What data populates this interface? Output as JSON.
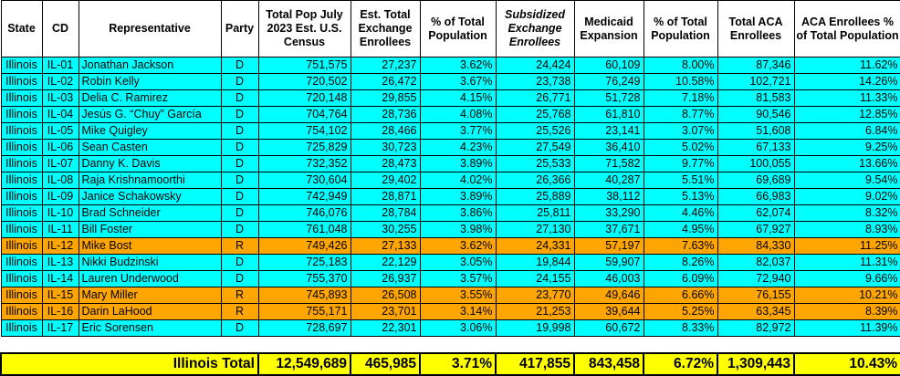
{
  "headers": {
    "state": "State",
    "cd": "CD",
    "rep": "Representative",
    "party": "Party",
    "total_pop": "Total Pop July 2023 Est. U.S. Census",
    "exchange": "Est. Total Exchange Enrollees",
    "pct1": "% of Total Population",
    "subsidized": "Subsidized Exchange Enrollees",
    "medicaid": "Medicaid Expansion",
    "pct2": "% of Total Population",
    "aca": "Total ACA Enrollees",
    "aca_pct": "ACA Enrollees % of Total Population"
  },
  "rows": [
    {
      "state": "Illinois",
      "cd": "IL-01",
      "rep": "Jonathan Jackson",
      "party": "D",
      "pop": "751,575",
      "exch": "27,237",
      "pct1": "3.62%",
      "sub": "24,424",
      "med": "60,109",
      "pct2": "8.00%",
      "aca": "87,346",
      "acapct": "11.62%"
    },
    {
      "state": "Illinois",
      "cd": "IL-02",
      "rep": "Robin Kelly",
      "party": "D",
      "pop": "720,502",
      "exch": "26,472",
      "pct1": "3.67%",
      "sub": "23,738",
      "med": "76,249",
      "pct2": "10.58%",
      "aca": "102,721",
      "acapct": "14.26%"
    },
    {
      "state": "Illinois",
      "cd": "IL-03",
      "rep": "Delia C. Ramirez",
      "party": "D",
      "pop": "720,148",
      "exch": "29,855",
      "pct1": "4.15%",
      "sub": "26,771",
      "med": "51,728",
      "pct2": "7.18%",
      "aca": "81,583",
      "acapct": "11.33%"
    },
    {
      "state": "Illinois",
      "cd": "IL-04",
      "rep": "Jesús G. “Chuy” García",
      "party": "D",
      "pop": "704,764",
      "exch": "28,736",
      "pct1": "4.08%",
      "sub": "25,768",
      "med": "61,810",
      "pct2": "8.77%",
      "aca": "90,546",
      "acapct": "12.85%"
    },
    {
      "state": "Illinois",
      "cd": "IL-05",
      "rep": "Mike Quigley",
      "party": "D",
      "pop": "754,102",
      "exch": "28,466",
      "pct1": "3.77%",
      "sub": "25,526",
      "med": "23,141",
      "pct2": "3.07%",
      "aca": "51,608",
      "acapct": "6.84%"
    },
    {
      "state": "Illinois",
      "cd": "IL-06",
      "rep": "Sean Casten",
      "party": "D",
      "pop": "725,829",
      "exch": "30,723",
      "pct1": "4.23%",
      "sub": "27,549",
      "med": "36,410",
      "pct2": "5.02%",
      "aca": "67,133",
      "acapct": "9.25%"
    },
    {
      "state": "Illinois",
      "cd": "IL-07",
      "rep": "Danny K. Davis",
      "party": "D",
      "pop": "732,352",
      "exch": "28,473",
      "pct1": "3.89%",
      "sub": "25,533",
      "med": "71,582",
      "pct2": "9.77%",
      "aca": "100,055",
      "acapct": "13.66%"
    },
    {
      "state": "Illinois",
      "cd": "IL-08",
      "rep": "Raja Krishnamoorthi",
      "party": "D",
      "pop": "730,604",
      "exch": "29,402",
      "pct1": "4.02%",
      "sub": "26,366",
      "med": "40,287",
      "pct2": "5.51%",
      "aca": "69,689",
      "acapct": "9.54%"
    },
    {
      "state": "Illinois",
      "cd": "IL-09",
      "rep": "Janice Schakowsky",
      "party": "D",
      "pop": "742,949",
      "exch": "28,871",
      "pct1": "3.89%",
      "sub": "25,889",
      "med": "38,112",
      "pct2": "5.13%",
      "aca": "66,983",
      "acapct": "9.02%"
    },
    {
      "state": "Illinois",
      "cd": "IL-10",
      "rep": "Brad Schneider",
      "party": "D",
      "pop": "746,076",
      "exch": "28,784",
      "pct1": "3.86%",
      "sub": "25,811",
      "med": "33,290",
      "pct2": "4.46%",
      "aca": "62,074",
      "acapct": "8.32%"
    },
    {
      "state": "Illinois",
      "cd": "IL-11",
      "rep": "Bill Foster",
      "party": "D",
      "pop": "761,048",
      "exch": "30,255",
      "pct1": "3.98%",
      "sub": "27,130",
      "med": "37,671",
      "pct2": "4.95%",
      "aca": "67,927",
      "acapct": "8.93%"
    },
    {
      "state": "Illinois",
      "cd": "IL-12",
      "rep": "Mike Bost",
      "party": "R",
      "pop": "749,426",
      "exch": "27,133",
      "pct1": "3.62%",
      "sub": "24,331",
      "med": "57,197",
      "pct2": "7.63%",
      "aca": "84,330",
      "acapct": "11.25%"
    },
    {
      "state": "Illinois",
      "cd": "IL-13",
      "rep": "Nikki Budzinski",
      "party": "D",
      "pop": "725,183",
      "exch": "22,129",
      "pct1": "3.05%",
      "sub": "19,844",
      "med": "59,907",
      "pct2": "8.26%",
      "aca": "82,037",
      "acapct": "11.31%"
    },
    {
      "state": "Illinois",
      "cd": "IL-14",
      "rep": "Lauren Underwood",
      "party": "D",
      "pop": "755,370",
      "exch": "26,937",
      "pct1": "3.57%",
      "sub": "24,155",
      "med": "46,003",
      "pct2": "6.09%",
      "aca": "72,940",
      "acapct": "9.66%"
    },
    {
      "state": "Illinois",
      "cd": "IL-15",
      "rep": "Mary Miller",
      "party": "R",
      "pop": "745,893",
      "exch": "26,508",
      "pct1": "3.55%",
      "sub": "23,770",
      "med": "49,646",
      "pct2": "6.66%",
      "aca": "76,155",
      "acapct": "10.21%"
    },
    {
      "state": "Illinois",
      "cd": "IL-16",
      "rep": "Darin LaHood",
      "party": "R",
      "pop": "755,171",
      "exch": "23,701",
      "pct1": "3.14%",
      "sub": "21,253",
      "med": "39,644",
      "pct2": "5.25%",
      "aca": "63,345",
      "acapct": "8.39%"
    },
    {
      "state": "Illinois",
      "cd": "IL-17",
      "rep": "Eric Sorensen",
      "party": "D",
      "pop": "728,697",
      "exch": "22,301",
      "pct1": "3.06%",
      "sub": "19,998",
      "med": "60,672",
      "pct2": "8.33%",
      "aca": "82,972",
      "acapct": "11.39%"
    }
  ],
  "total": {
    "label": "Illinois Total",
    "pop": "12,549,689",
    "exch": "465,985",
    "pct1": "3.71%",
    "sub": "417,855",
    "med": "843,458",
    "pct2": "6.72%",
    "aca": "1,309,443",
    "acapct": "10.43%"
  },
  "colors": {
    "democrat_row": "#00ffff",
    "republican_row": "#ffa500",
    "total_row": "#ffff00"
  }
}
